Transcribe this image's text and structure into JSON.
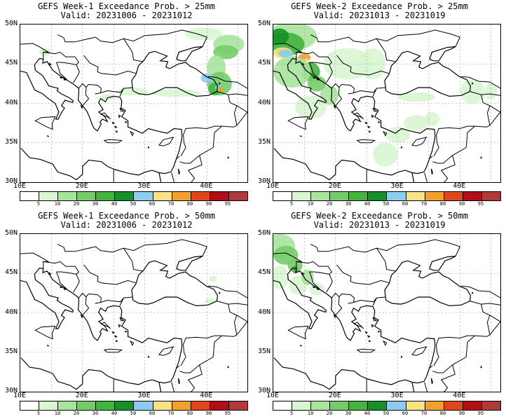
{
  "panels": [
    {
      "line1": "GEFS Week-1 Exceedance Prob. > 25mm",
      "line2": "Valid: 20231006 - 20231012"
    },
    {
      "line1": "GEFS Week-2 Exceedance Prob. > 25mm",
      "line2": "Valid: 20231013 - 20231019"
    },
    {
      "line1": "GEFS Week-1 Exceedance Prob. > 50mm",
      "line2": "Valid: 20231006 - 20231012"
    },
    {
      "line1": "GEFS Week-2 Exceedance Prob. > 50mm",
      "line2": "Valid: 20231013 - 20231019"
    }
  ],
  "lat_ticks": [
    "50N",
    "45N",
    "40N",
    "35N",
    "30N"
  ],
  "lon_ticks": [
    "10E",
    "20E",
    "30E",
    "40E"
  ],
  "colorbar": {
    "colors": [
      "#ffffff",
      "#d9f5d1",
      "#a8e49c",
      "#76cc6b",
      "#43b43f",
      "#17902a",
      "#8ecbf0",
      "#f8e384",
      "#f0a02e",
      "#e0451d",
      "#b30e16",
      "#b03a3a"
    ],
    "labels": [
      "5",
      "10",
      "20",
      "30",
      "40",
      "50",
      "60",
      "70",
      "80",
      "90",
      "95"
    ]
  }
}
